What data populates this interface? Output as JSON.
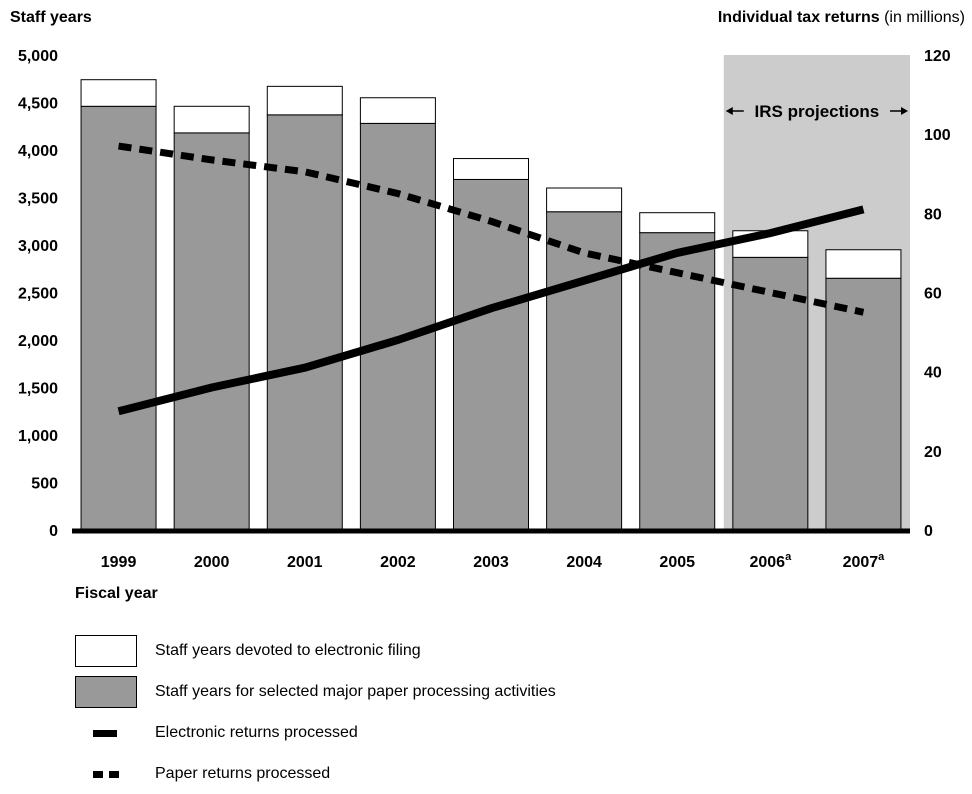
{
  "chart_data": {
    "type": "bar",
    "left_axis_title": "Staff years",
    "right_axis_title_bold": "Individual tax returns",
    "right_axis_title_normal": " (in millions)",
    "xlabel": "Fiscal year",
    "categories": [
      {
        "label": "1999",
        "sup": ""
      },
      {
        "label": "2000",
        "sup": ""
      },
      {
        "label": "2001",
        "sup": ""
      },
      {
        "label": "2002",
        "sup": ""
      },
      {
        "label": "2003",
        "sup": ""
      },
      {
        "label": "2004",
        "sup": ""
      },
      {
        "label": "2005",
        "sup": ""
      },
      {
        "label": "2006",
        "sup": "a"
      },
      {
        "label": "2007",
        "sup": "a"
      }
    ],
    "left_ylim": [
      0,
      5000
    ],
    "left_ticks": [
      "0",
      "500",
      "1,000",
      "1,500",
      "2,000",
      "2,500",
      "3,000",
      "3,500",
      "4,000",
      "4,500",
      "5,000"
    ],
    "right_ylim": [
      0,
      120
    ],
    "right_ticks": [
      "0",
      "20",
      "40",
      "60",
      "80",
      "100",
      "120"
    ],
    "series": [
      {
        "name": "Staff years for selected major paper processing activities",
        "kind": "bar",
        "color": "#999999",
        "values": [
          4460,
          4180,
          4370,
          4280,
          3690,
          3350,
          3130,
          2870,
          2650
        ]
      },
      {
        "name": "Staff years devoted to electronic filing",
        "kind": "bar-stack",
        "color": "#ffffff",
        "values": [
          280,
          280,
          300,
          270,
          220,
          250,
          210,
          280,
          300
        ]
      },
      {
        "name": "Electronic returns processed",
        "kind": "line",
        "axis": "right",
        "color": "#000000",
        "values": [
          30,
          36,
          41,
          48,
          56,
          63,
          70,
          75,
          81
        ]
      },
      {
        "name": "Paper returns processed",
        "kind": "line-dashed",
        "axis": "right",
        "color": "#000000",
        "values": [
          97,
          93.5,
          90.5,
          85,
          78,
          70,
          65,
          60,
          55
        ]
      }
    ],
    "annotation": {
      "text": "IRS projections",
      "covers_categories": [
        "2006",
        "2007"
      ],
      "shade": "#cccccc"
    },
    "grid": false
  }
}
